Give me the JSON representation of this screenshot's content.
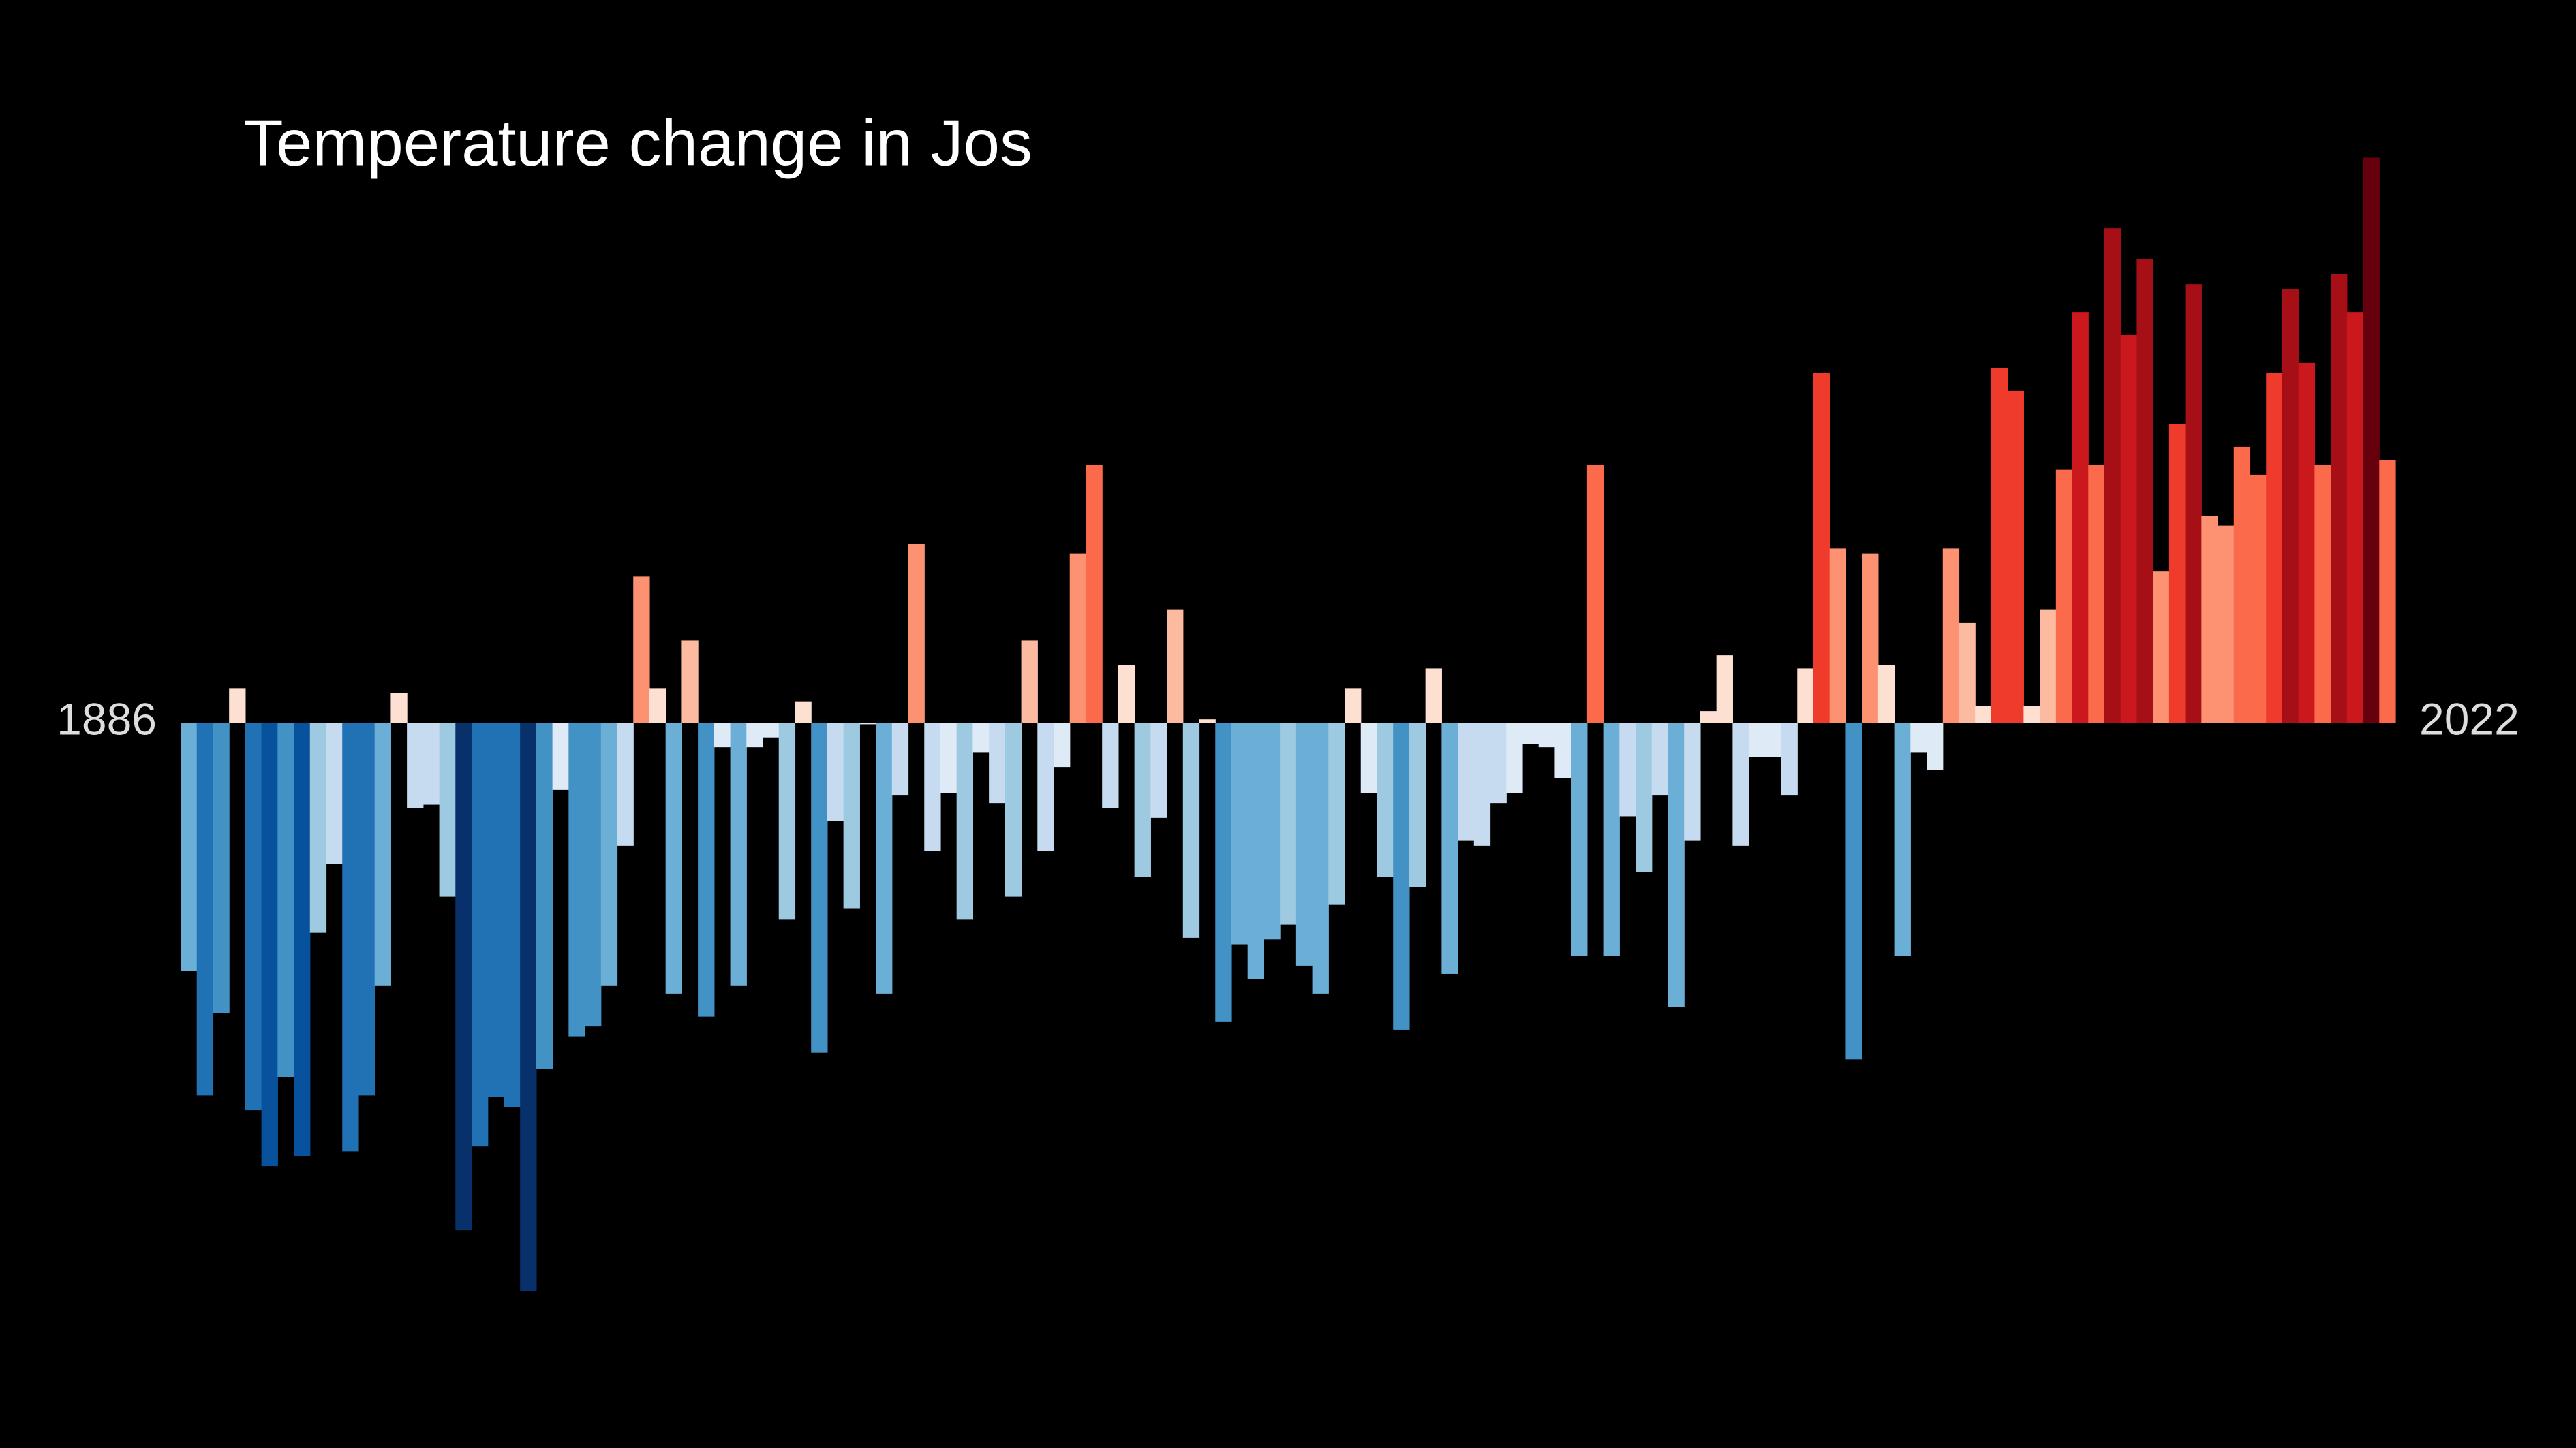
{
  "chart_data": {
    "type": "bar",
    "title": "Temperature change in Jos",
    "categories": [
      "1886",
      null,
      null,
      null,
      null,
      null,
      null,
      null,
      null,
      null,
      null,
      null,
      null,
      null,
      null,
      null,
      null,
      null,
      null,
      null,
      null,
      null,
      null,
      null,
      null,
      null,
      null,
      null,
      null,
      null,
      null,
      null,
      null,
      null,
      null,
      null,
      null,
      null,
      null,
      null,
      null,
      null,
      null,
      null,
      null,
      null,
      null,
      null,
      null,
      null,
      null,
      null,
      null,
      null,
      null,
      null,
      null,
      null,
      null,
      null,
      null,
      null,
      null,
      null,
      null,
      null,
      null,
      null,
      null,
      null,
      null,
      null,
      null,
      null,
      null,
      null,
      null,
      null,
      null,
      null,
      null,
      null,
      null,
      null,
      null,
      null,
      null,
      null,
      null,
      null,
      null,
      null,
      null,
      null,
      null,
      null,
      null,
      null,
      null,
      null,
      null,
      null,
      null,
      null,
      null,
      null,
      null,
      null,
      null,
      null,
      null,
      null,
      null,
      null,
      null,
      null,
      null,
      null,
      null,
      null,
      null,
      null,
      null,
      null,
      null,
      null,
      null,
      null,
      null,
      null,
      null,
      null,
      null,
      null,
      null,
      null,
      "2022"
    ],
    "values": [
      -1.51,
      -2.27,
      -1.77,
      0.21,
      -2.36,
      -2.7,
      -2.16,
      -2.64,
      -1.28,
      -0.86,
      -2.61,
      -2.27,
      -1.6,
      0.18,
      -0.52,
      -0.5,
      -1.06,
      -3.09,
      -2.58,
      -2.28,
      -2.34,
      -3.46,
      -2.11,
      -0.41,
      -1.91,
      -1.85,
      -1.6,
      -0.75,
      0.89,
      0.21,
      -1.65,
      0.5,
      -1.79,
      -0.15,
      -1.6,
      -0.15,
      -0.09,
      -1.2,
      0.13,
      -2.01,
      -0.6,
      -1.13,
      -0.01,
      -1.65,
      -0.44,
      1.09,
      -0.78,
      -0.43,
      -1.2,
      -0.18,
      -0.49,
      -1.06,
      0.5,
      -0.78,
      -0.27,
      1.03,
      1.57,
      -0.52,
      0.35,
      -0.94,
      -0.58,
      0.69,
      -1.31,
      0.02,
      -1.82,
      -1.35,
      -1.56,
      -1.32,
      -1.23,
      -1.48,
      -1.65,
      -1.11,
      0.21,
      -0.43,
      -0.94,
      -1.87,
      -1.0,
      0.33,
      -1.53,
      -0.72,
      -0.75,
      -0.49,
      -0.43,
      -0.13,
      -0.15,
      -0.34,
      -1.42,
      1.57,
      -1.42,
      -0.57,
      -0.91,
      -0.44,
      -1.73,
      -0.72,
      0.07,
      0.41,
      -0.75,
      -0.21,
      -0.21,
      -0.44,
      0.33,
      2.13,
      1.06,
      -2.05,
      1.03,
      0.35,
      -1.42,
      -0.18,
      -0.29,
      1.06,
      0.61,
      0.1,
      2.16,
      2.02,
      0.1,
      0.69,
      1.54,
      2.5,
      1.57,
      3.01,
      2.36,
      2.82,
      0.92,
      1.82,
      2.67,
      1.26,
      1.2,
      1.68,
      1.51,
      2.13,
      2.64,
      2.19,
      1.57,
      2.73,
      2.5,
      3.44,
      1.6
    ],
    "ylim": [
      -3.5,
      3.5
    ],
    "colors": [
      "#08306b",
      "#08519c",
      "#2171b5",
      "#4292c6",
      "#6baed6",
      "#9ecae1",
      "#c6dbef",
      "#deebf7",
      "#fee0d2",
      "#fcbba1",
      "#fc9272",
      "#fb6a4a",
      "#ef3b2c",
      "#cb181d",
      "#a50f15",
      "#67000d"
    ]
  }
}
